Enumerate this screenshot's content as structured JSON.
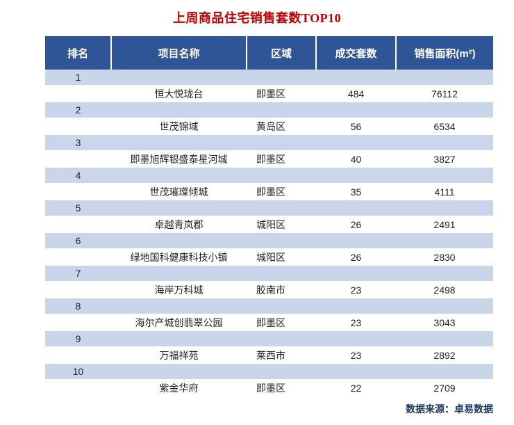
{
  "title": "上周商品住宅销售套数TOP10",
  "source": "数据来源：卓易数据",
  "colors": {
    "title_text": "#C00000",
    "header_bg": "#2F5597",
    "header_text": "#FFFFFF",
    "rank_band_bg": "#C9D6E9",
    "body_text": "#1F1F1F",
    "source_text": "#203864"
  },
  "table": {
    "headers": [
      "排名",
      "项目名称",
      "区域",
      "成交套数",
      "销售面积(m²)"
    ],
    "rows": [
      {
        "rank": "1",
        "name": "恒大悦珑台",
        "region": "即墨区",
        "units": "484",
        "area": "76112"
      },
      {
        "rank": "2",
        "name": "世茂锦域",
        "region": "黄岛区",
        "units": "56",
        "area": "6534"
      },
      {
        "rank": "3",
        "name": "即墨旭辉银盛泰星河城",
        "region": "即墨区",
        "units": "40",
        "area": "3827"
      },
      {
        "rank": "4",
        "name": "世茂璀璨倾城",
        "region": "即墨区",
        "units": "35",
        "area": "4111"
      },
      {
        "rank": "5",
        "name": "卓越青岚郡",
        "region": "城阳区",
        "units": "26",
        "area": "2491"
      },
      {
        "rank": "6",
        "name": "绿地国科健康科技小镇",
        "region": "城阳区",
        "units": "26",
        "area": "2830"
      },
      {
        "rank": "7",
        "name": "海岸万科城",
        "region": "胶南市",
        "units": "23",
        "area": "2498"
      },
      {
        "rank": "8",
        "name": "海尔产城创翡翠公园",
        "region": "即墨区",
        "units": "23",
        "area": "3043"
      },
      {
        "rank": "9",
        "name": "万福祥苑",
        "region": "莱西市",
        "units": "23",
        "area": "2892"
      },
      {
        "rank": "10",
        "name": "紫金华府",
        "region": "即墨区",
        "units": "22",
        "area": "2709"
      }
    ]
  },
  "chart_data": {
    "type": "table",
    "title": "上周商品住宅销售套数TOP10",
    "columns": [
      "排名",
      "项目名称",
      "区域",
      "成交套数",
      "销售面积(m²)"
    ],
    "rows": [
      [
        "1",
        "恒大悦珑台",
        "即墨区",
        484,
        76112
      ],
      [
        "2",
        "世茂锦域",
        "黄岛区",
        56,
        6534
      ],
      [
        "3",
        "即墨旭辉银盛泰星河城",
        "即墨区",
        40,
        3827
      ],
      [
        "4",
        "世茂璀璨倾城",
        "即墨区",
        35,
        4111
      ],
      [
        "5",
        "卓越青岚郡",
        "城阳区",
        26,
        2491
      ],
      [
        "6",
        "绿地国科健康科技小镇",
        "城阳区",
        26,
        2830
      ],
      [
        "7",
        "海岸万科城",
        "胶南市",
        23,
        2498
      ],
      [
        "8",
        "海尔产城创翡翠公园",
        "即墨区",
        23,
        3043
      ],
      [
        "9",
        "万福祥苑",
        "莱西市",
        23,
        2892
      ],
      [
        "10",
        "紫金华府",
        "即墨区",
        22,
        2709
      ]
    ],
    "source_note": "数据来源：卓易数据"
  }
}
